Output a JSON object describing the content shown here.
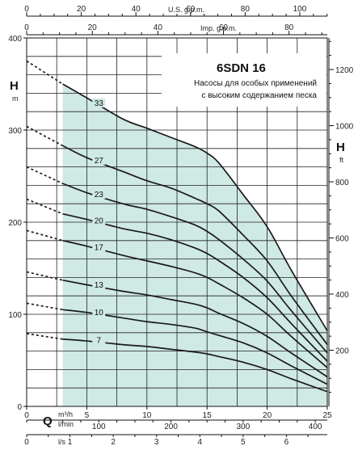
{
  "chart_data": {
    "type": "line",
    "title": "6SDN 16",
    "subtitle_lines": [
      "Насосы для особых применений",
      "с высоким содержанием песка"
    ],
    "ylabel_left": "H",
    "ylabel_left_unit": "m",
    "ylabel_right": "H",
    "ylabel_right_unit": "ft",
    "xlabel": "Q",
    "x_units": [
      "m³/h",
      "l/min",
      "l/s"
    ],
    "top_axis_units": [
      "U.S. g.p.m.",
      "Imp. g.p.m."
    ],
    "xlim": [
      0,
      25
    ],
    "ylim": [
      0,
      400
    ],
    "grid": true,
    "axes": {
      "m3h": {
        "ticks": [
          0,
          5,
          10,
          15,
          20,
          25
        ]
      },
      "lmin": {
        "ticks": [
          100,
          200,
          300,
          400
        ]
      },
      "ls": {
        "ticks": [
          0,
          1,
          2,
          3,
          4,
          5,
          6
        ]
      },
      "usgpm": {
        "ticks": [
          0,
          20,
          40,
          60,
          80,
          100
        ]
      },
      "impgpm": {
        "ticks": [
          0,
          20,
          40,
          60,
          80
        ]
      },
      "left_m": {
        "ticks": [
          0,
          100,
          200,
          300,
          400
        ]
      },
      "right_ft": {
        "ticks": [
          200,
          400,
          600,
          800,
          1000,
          1200
        ]
      }
    },
    "operating_range": [
      3,
      25
    ],
    "series": [
      {
        "name": "33",
        "shutoff": 375,
        "x": [
          3,
          5,
          8,
          10,
          12,
          14,
          15,
          16,
          18,
          20,
          22,
          25
        ],
        "y": [
          350,
          335,
          312,
          302,
          292,
          282,
          275,
          264,
          230,
          195,
          148,
          82
        ]
      },
      {
        "name": "27",
        "shutoff": 304,
        "x": [
          3,
          5,
          8,
          10,
          12,
          14,
          15,
          16,
          18,
          20,
          22,
          25
        ],
        "y": [
          283,
          270,
          255,
          245,
          237,
          226,
          220,
          212,
          186,
          158,
          120,
          67
        ]
      },
      {
        "name": "23",
        "shutoff": 260,
        "x": [
          3,
          5,
          8,
          10,
          12,
          14,
          15,
          16,
          18,
          20,
          22,
          25
        ],
        "y": [
          242,
          232,
          220,
          214,
          206,
          197,
          190,
          181,
          160,
          136,
          104,
          58
        ]
      },
      {
        "name": "20",
        "shutoff": 225,
        "x": [
          3,
          5,
          8,
          10,
          12,
          14,
          15,
          16,
          18,
          20,
          22,
          25
        ],
        "y": [
          209,
          203,
          193,
          188,
          181,
          172,
          166,
          158,
          140,
          118,
          90,
          49
        ]
      },
      {
        "name": "17",
        "shutoff": 191,
        "x": [
          3,
          5,
          8,
          10,
          12,
          14,
          15,
          16,
          18,
          20,
          22,
          25
        ],
        "y": [
          180,
          174,
          164,
          158,
          152,
          145,
          140,
          133,
          118,
          100,
          76,
          42
        ]
      },
      {
        "name": "13",
        "shutoff": 146,
        "x": [
          3,
          5,
          8,
          10,
          12,
          14,
          15,
          16,
          18,
          20,
          22,
          25
        ],
        "y": [
          137,
          132,
          125,
          121,
          116,
          111,
          107,
          101,
          90,
          76,
          58,
          32
        ]
      },
      {
        "name": "10",
        "shutoff": 112,
        "x": [
          3,
          5,
          8,
          10,
          12,
          14,
          15,
          16,
          18,
          20,
          22,
          25
        ],
        "y": [
          105,
          102,
          96,
          92,
          89,
          85,
          81,
          77,
          69,
          58,
          44,
          24
        ]
      },
      {
        "name": "7",
        "shutoff": 79,
        "x": [
          3,
          5,
          8,
          10,
          12,
          14,
          15,
          16,
          18,
          20,
          22,
          25
        ],
        "y": [
          73,
          71,
          67,
          65,
          62,
          59,
          57,
          54,
          48,
          40,
          30,
          16
        ]
      }
    ],
    "colors": {
      "area": "#cfe9e4",
      "curve": "#1a1a1a",
      "grid": "#222222"
    }
  }
}
